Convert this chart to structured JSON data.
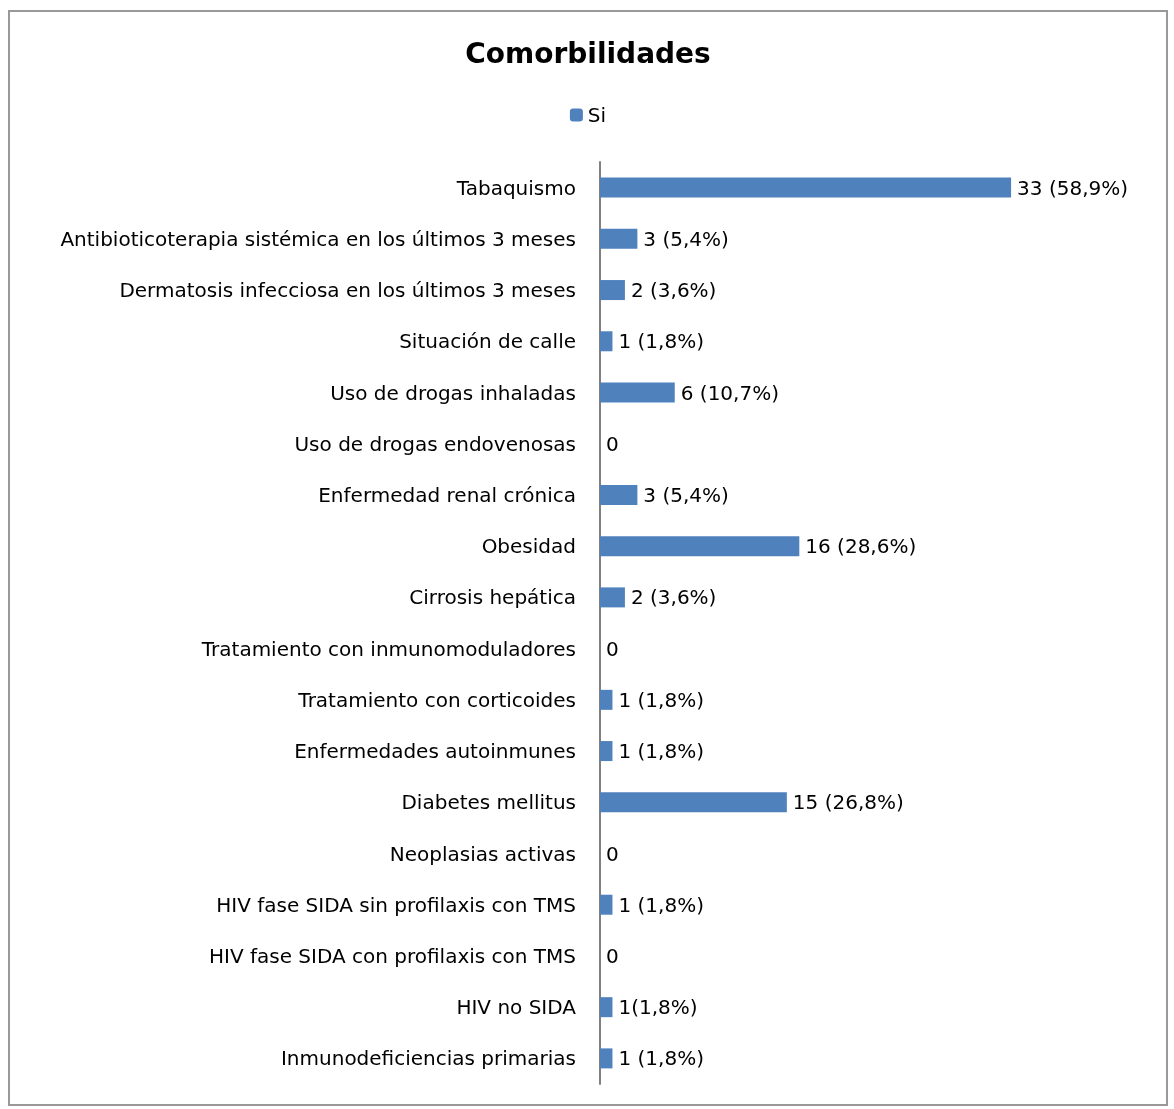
{
  "chart_data": {
    "type": "bar",
    "orientation": "horizontal",
    "title": "Comorbilidades",
    "legend": "top",
    "categories": [
      "Tabaquismo",
      "Antibioticoterapia sistémica en los últimos 3 meses",
      "Dermatosis infecciosa en los últimos 3 meses",
      "Situación de calle",
      "Uso de drogas inhaladas",
      "Uso de drogas endovenosas",
      "Enfermedad renal crónica",
      "Obesidad",
      "Cirrosis hepática",
      "Tratamiento con inmunomoduladores",
      "Tratamiento con corticoides",
      "Enfermedades autoinmunes",
      "Diabetes mellitus",
      "Neoplasias activas",
      "HIV fase SIDA sin profilaxis con TMS",
      "HIV fase SIDA con profilaxis con TMS",
      "HIV no SIDA",
      "Inmunodeficiencias primarias"
    ],
    "series": [
      {
        "name": "Si",
        "color": "#4f81bd",
        "values": [
          33,
          3,
          2,
          1,
          6,
          0,
          3,
          16,
          2,
          0,
          1,
          1,
          15,
          0,
          1,
          0,
          1,
          1
        ],
        "value_labels": [
          "33 (58,9%)",
          "3 (5,4%)",
          "2 (3,6%)",
          "1 (1,8%)",
          "6 (10,7%)",
          "0",
          "3 (5,4%)",
          "16 (28,6%)",
          "2 (3,6%)",
          "0",
          "1 (1,8%)",
          "1 (1,8%)",
          "15 (26,8%)",
          "0",
          "1 (1,8%)",
          "0",
          "1(1,8%)",
          "1 (1,8%)"
        ]
      }
    ]
  }
}
